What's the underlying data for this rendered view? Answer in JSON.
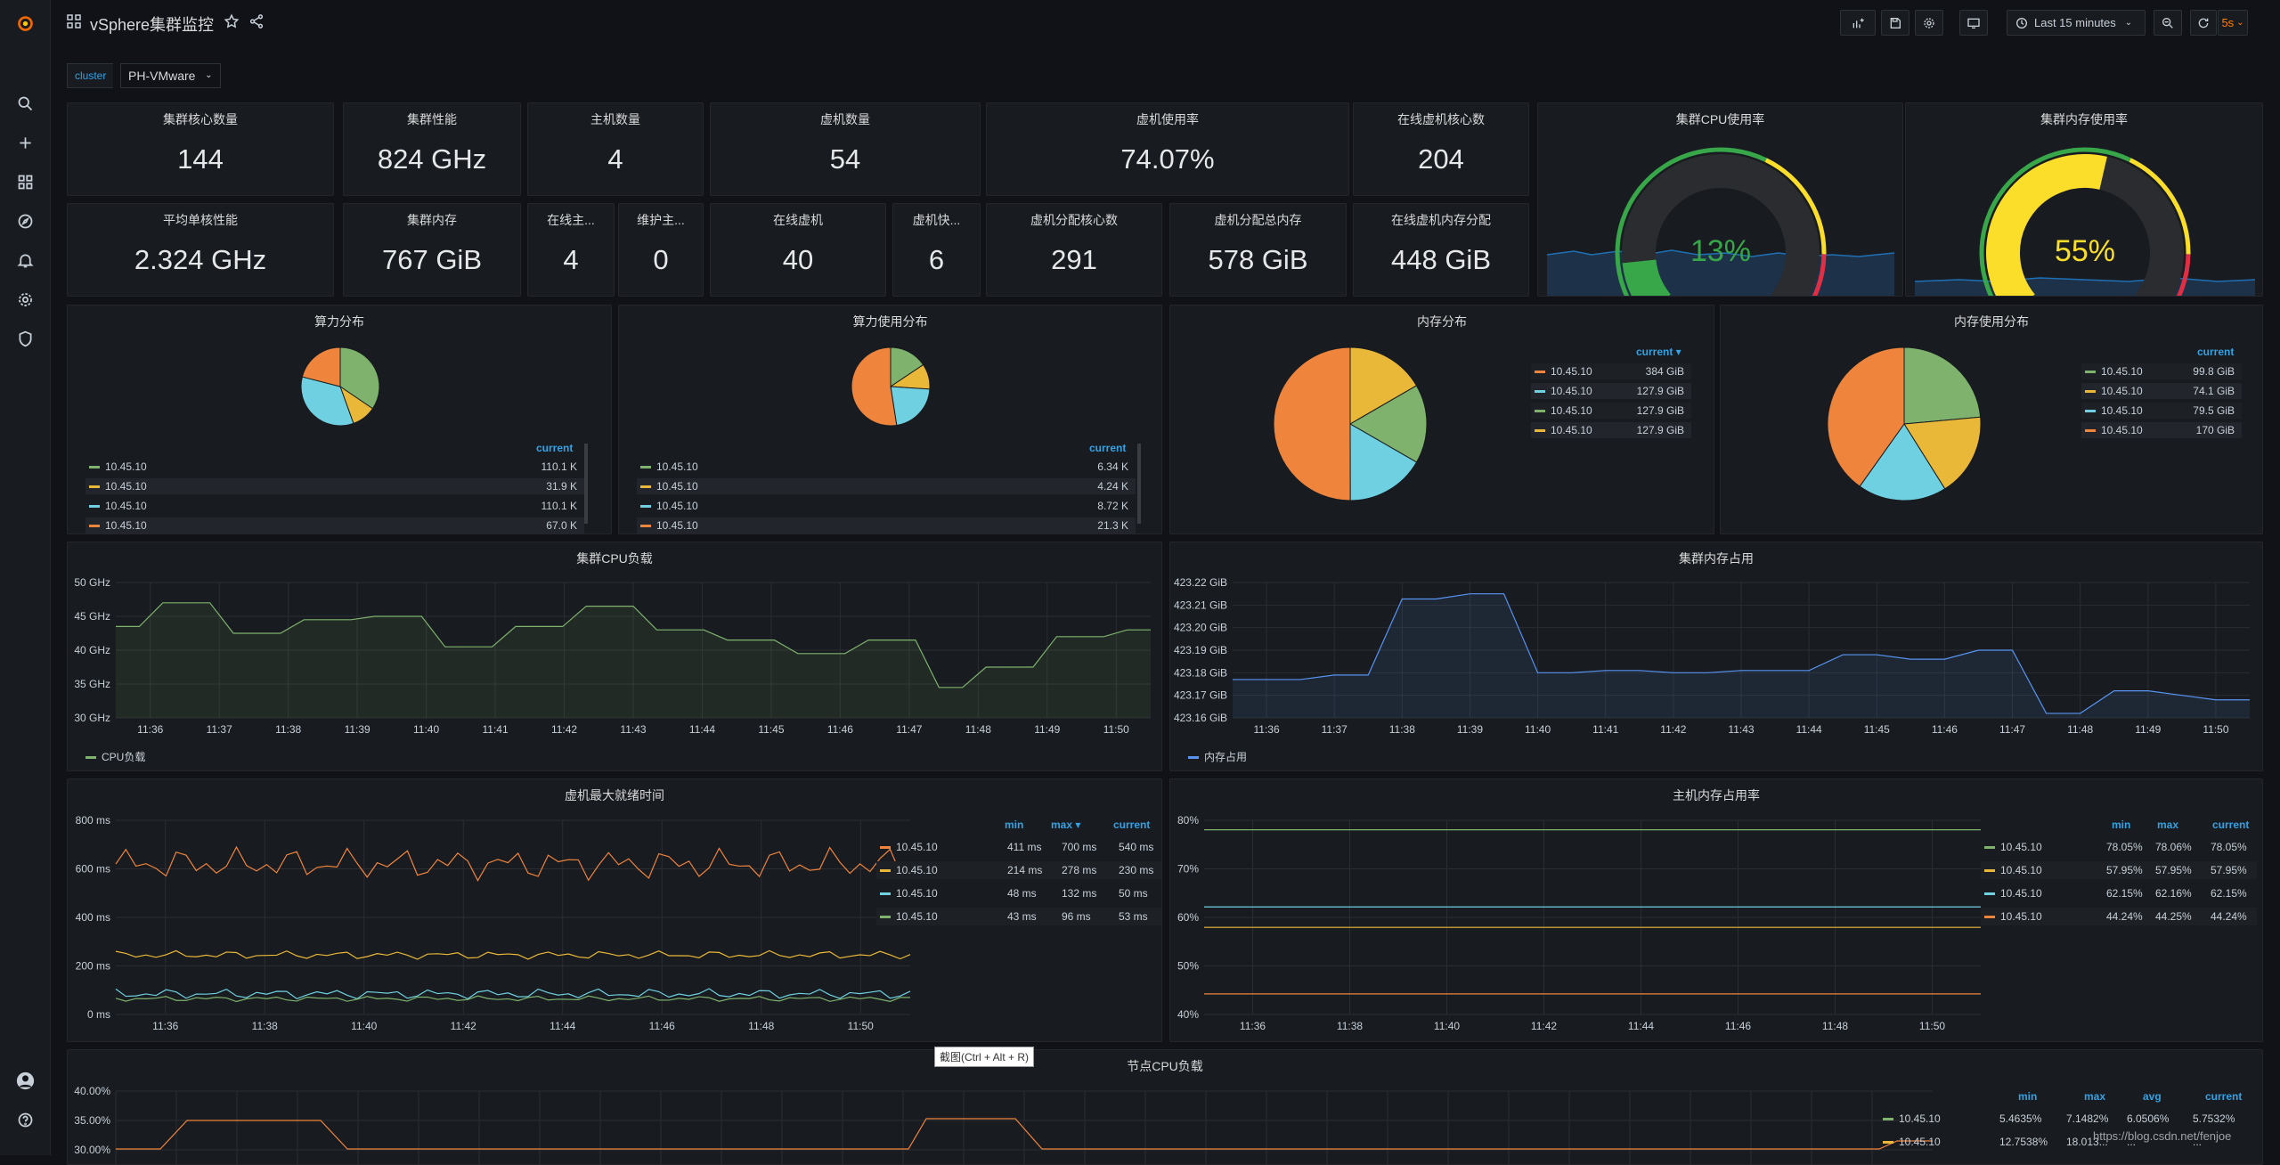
{
  "dashboard": {
    "title": "vSphere集群监控",
    "time_range": "Last 15 minutes",
    "refresh": "5s"
  },
  "variables": {
    "label": "cluster",
    "value": "PH-VMware"
  },
  "stats": [
    {
      "title": "集群核心数量",
      "value": "144"
    },
    {
      "title": "集群性能",
      "value": "824 GHz"
    },
    {
      "title": "主机数量",
      "value": "4"
    },
    {
      "title": "虚机数量",
      "value": "54"
    },
    {
      "title": "虚机使用率",
      "value": "74.07%"
    },
    {
      "title": "在线虚机核心数",
      "value": "204"
    },
    {
      "title": "平均单核性能",
      "value": "2.324 GHz"
    },
    {
      "title": "集群内存",
      "value": "767 GiB"
    },
    {
      "title": "在线主...",
      "value": "4"
    },
    {
      "title": "维护主...",
      "value": "0"
    },
    {
      "title": "在线虚机",
      "value": "40"
    },
    {
      "title": "虚机快...",
      "value": "6"
    },
    {
      "title": "虚机分配核心数",
      "value": "291"
    },
    {
      "title": "虚机分配总内存",
      "value": "578 GiB"
    },
    {
      "title": "在线虚机内存分配",
      "value": "448 GiB"
    }
  ],
  "gauges": [
    {
      "title": "集群CPU使用率",
      "value": "13%",
      "percent": 13,
      "color": "#37a74a"
    },
    {
      "title": "集群内存使用率",
      "value": "55%",
      "percent": 55,
      "color": "#fade2a"
    }
  ],
  "pies": [
    {
      "title": "算力分布",
      "legend_header": "current",
      "items": [
        {
          "label": "10.45.10",
          "value": "110.1 K",
          "color": "#7eb26d"
        },
        {
          "label": "10.45.10",
          "value": "31.9 K",
          "color": "#eab839"
        },
        {
          "label": "10.45.10",
          "value": "110.1 K",
          "color": "#6ed0e0"
        },
        {
          "label": "10.45.10",
          "value": "67.0 K",
          "color": "#ef843c"
        }
      ],
      "slices": [
        110.1,
        31.9,
        110.1,
        67.0
      ]
    },
    {
      "title": "算力使用分布",
      "legend_header": "current",
      "items": [
        {
          "label": "10.45.10",
          "value": "6.34 K",
          "color": "#7eb26d"
        },
        {
          "label": "10.45.10",
          "value": "4.24 K",
          "color": "#eab839"
        },
        {
          "label": "10.45.10",
          "value": "8.72 K",
          "color": "#6ed0e0"
        },
        {
          "label": "10.45.10",
          "value": "21.3 K",
          "color": "#ef843c"
        }
      ],
      "slices": [
        6.34,
        4.24,
        8.72,
        21.3
      ]
    },
    {
      "title": "内存分布",
      "legend_header": "current ▾",
      "items": [
        {
          "label": "10.45.10",
          "value": "384 GiB",
          "color": "#ef843c"
        },
        {
          "label": "10.45.10",
          "value": "127.9 GiB",
          "color": "#6ed0e0"
        },
        {
          "label": "10.45.10",
          "value": "127.9 GiB",
          "color": "#7eb26d"
        },
        {
          "label": "10.45.10",
          "value": "127.9 GiB",
          "color": "#eab839"
        }
      ],
      "slices": [
        127.9,
        127.9,
        127.9,
        384
      ]
    },
    {
      "title": "内存使用分布",
      "legend_header": "current",
      "items": [
        {
          "label": "10.45.10",
          "value": "99.8 GiB",
          "color": "#7eb26d"
        },
        {
          "label": "10.45.10",
          "value": "74.1 GiB",
          "color": "#eab839"
        },
        {
          "label": "10.45.10",
          "value": "79.5 GiB",
          "color": "#6ed0e0"
        },
        {
          "label": "10.45.10",
          "value": "170 GiB",
          "color": "#ef843c"
        }
      ],
      "slices": [
        99.8,
        74.1,
        79.5,
        170
      ]
    }
  ],
  "charts": {
    "cpu_load": {
      "title": "集群CPU负载",
      "legend": "CPU负载",
      "color": "#7eb26d",
      "yticks": [
        "50 GHz",
        "45 GHz",
        "40 GHz",
        "35 GHz",
        "30 GHz"
      ],
      "ymin": 30,
      "ymax": 50,
      "xticks": [
        "11:36",
        "11:37",
        "11:38",
        "11:39",
        "11:40",
        "11:41",
        "11:42",
        "11:43",
        "11:44",
        "11:45",
        "11:46",
        "11:47",
        "11:48",
        "11:49",
        "11:50"
      ],
      "values": [
        43.5,
        43.5,
        47,
        47,
        47,
        42.5,
        42.5,
        42.5,
        44.5,
        44.5,
        44.5,
        45,
        45,
        45,
        40.5,
        40.5,
        40.5,
        43.5,
        43.5,
        43.5,
        46.5,
        46.5,
        46.5,
        43,
        43,
        43,
        41.5,
        41.5,
        41.5,
        39.5,
        39.5,
        39.5,
        41.5,
        41.5,
        41.5,
        34.5,
        34.5,
        37.5,
        37.5,
        37.5,
        42,
        42,
        42,
        43,
        43
      ]
    },
    "mem_usage": {
      "title": "集群内存占用",
      "legend": "内存占用",
      "color": "#5794f2",
      "yticks": [
        "423.22 GiB",
        "423.21 GiB",
        "423.20 GiB",
        "423.19 GiB",
        "423.18 GiB",
        "423.17 GiB",
        "423.16 GiB"
      ],
      "ymin": 423.16,
      "ymax": 423.22,
      "xticks": [
        "11:36",
        "11:37",
        "11:38",
        "11:39",
        "11:40",
        "11:41",
        "11:42",
        "11:43",
        "11:44",
        "11:45",
        "11:46",
        "11:47",
        "11:48",
        "11:49",
        "11:50"
      ],
      "values": [
        423.177,
        423.177,
        423.177,
        423.179,
        423.179,
        423.2127,
        423.2127,
        423.215,
        423.215,
        423.18,
        423.18,
        423.181,
        423.181,
        423.18,
        423.18,
        423.181,
        423.181,
        423.181,
        423.188,
        423.188,
        423.186,
        423.186,
        423.19,
        423.19,
        423.162,
        423.162,
        423.172,
        423.172,
        423.17,
        423.168,
        423.168
      ]
    },
    "vm_ready": {
      "title": "虚机最大就绪时间",
      "yticks": [
        "800 ms",
        "600 ms",
        "400 ms",
        "200 ms",
        "0 ms"
      ],
      "ymin": 0,
      "ymax": 800,
      "xticks": [
        "11:36",
        "11:38",
        "11:40",
        "11:42",
        "11:44",
        "11:46",
        "11:48",
        "11:50"
      ],
      "headers": [
        "min",
        "max ▾",
        "current"
      ],
      "series": [
        {
          "name": "10.45.10",
          "min": "411 ms",
          "max": "700 ms",
          "current": "540 ms",
          "color": "#ef843c"
        },
        {
          "name": "10.45.10",
          "min": "214 ms",
          "max": "278 ms",
          "current": "230 ms",
          "color": "#eab839"
        },
        {
          "name": "10.45.10",
          "min": "48 ms",
          "max": "132 ms",
          "current": "50 ms",
          "color": "#6ed0e0"
        },
        {
          "name": "10.45.10",
          "min": "43 ms",
          "max": "96 ms",
          "current": "53 ms",
          "color": "#7eb26d"
        }
      ]
    },
    "host_mem": {
      "title": "主机内存占用率",
      "yticks": [
        "80%",
        "70%",
        "60%",
        "50%",
        "40%"
      ],
      "ymin": 40,
      "ymax": 80,
      "xticks": [
        "11:36",
        "11:38",
        "11:40",
        "11:42",
        "11:44",
        "11:46",
        "11:48",
        "11:50"
      ],
      "headers": [
        "min",
        "max",
        "current"
      ],
      "series": [
        {
          "name": "10.45.10",
          "min": "78.05%",
          "max": "78.06%",
          "current": "78.05%",
          "color": "#7eb26d",
          "v": 78.05
        },
        {
          "name": "10.45.10",
          "min": "57.95%",
          "max": "57.95%",
          "current": "57.95%",
          "color": "#eab839",
          "v": 57.95
        },
        {
          "name": "10.45.10",
          "min": "62.15%",
          "max": "62.16%",
          "current": "62.15%",
          "color": "#6ed0e0",
          "v": 62.15
        },
        {
          "name": "10.45.10",
          "min": "44.24%",
          "max": "44.25%",
          "current": "44.24%",
          "color": "#ef843c",
          "v": 44.24
        }
      ]
    },
    "node_cpu": {
      "title": "节点CPU负载",
      "yticks": [
        "40.00%",
        "35.00%",
        "30.00%"
      ],
      "headers": [
        "min",
        "max",
        "avg",
        "current"
      ],
      "series": [
        {
          "name": "10.45.10",
          "min": "5.4635%",
          "max": "7.1482%",
          "avg": "6.0506%",
          "current": "5.7532%",
          "color": "#7eb26d"
        },
        {
          "name": "10.45.10",
          "min": "12.7538%",
          "max": "18.013...",
          "avg": "...",
          "current": "...",
          "color": "#eab839"
        }
      ]
    }
  },
  "tooltip": "截图(Ctrl + Alt + R)",
  "watermark": "https://blog.csdn.net/fenjoe"
}
